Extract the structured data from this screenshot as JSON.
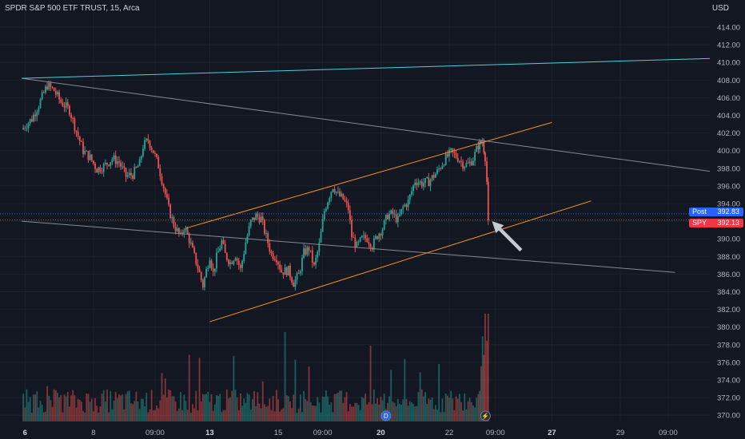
{
  "header": {
    "symbol_title": "SPDR S&P 500 ETF TRUST, 15, Arca",
    "currency": "USD"
  },
  "colors": {
    "background": "#131722",
    "up": "#26a69a",
    "down": "#ef5350",
    "channel": "#f7931a",
    "resistance_cyan": "#4dd0e1",
    "trendline_gray": "#868993",
    "post_tag": "#2962ff",
    "spy_tag": "#f23645"
  },
  "price_tags": {
    "post": {
      "label": "Post",
      "value": "392.83"
    },
    "spy": {
      "label": "SPY",
      "value": "392.13"
    }
  },
  "event_markers": [
    {
      "label": "D",
      "icon": "dividend-icon",
      "x": 21.3
    },
    {
      "label": "⚡",
      "icon": "flash-icon",
      "x": 27.12
    }
  ],
  "chart_data": {
    "type": "candlestick",
    "ylim": [
      369.5,
      416
    ],
    "y_ticks": [
      414,
      412,
      410,
      408,
      406,
      404,
      402,
      400,
      398,
      396,
      394,
      392,
      390,
      388,
      386,
      384,
      382,
      380,
      378,
      376,
      374,
      372,
      370
    ],
    "y_tick_labels": [
      "414.00",
      "412.00",
      "410.00",
      "408.00",
      "406.00",
      "404.00",
      "402.00",
      "400.00",
      "398.00",
      "396.00",
      "394.00",
      "392.00",
      "390.00",
      "388.00",
      "386.00",
      "384.00",
      "382.00",
      "380.00",
      "378.00",
      "376.00",
      "374.00",
      "372.00",
      "370.00"
    ],
    "x_ticks": [
      {
        "label": "6",
        "x": 0.2,
        "bold": true
      },
      {
        "label": "8",
        "x": 4.2,
        "bold": false
      },
      {
        "label": "09:00",
        "x": 7.8,
        "bold": false
      },
      {
        "label": "13",
        "x": 11.0,
        "bold": true
      },
      {
        "label": "15",
        "x": 15.0,
        "bold": false
      },
      {
        "label": "09:00",
        "x": 17.6,
        "bold": false
      },
      {
        "label": "20",
        "x": 21.0,
        "bold": true
      },
      {
        "label": "22",
        "x": 25.0,
        "bold": false
      },
      {
        "label": "09:00",
        "x": 27.7,
        "bold": false
      },
      {
        "label": "27",
        "x": 31.0,
        "bold": true
      },
      {
        "label": "29",
        "x": 35.0,
        "bold": false
      },
      {
        "label": "09:00",
        "x": 37.8,
        "bold": false
      }
    ],
    "price_path": [
      [
        0.0,
        402.4
      ],
      [
        0.6,
        403.6
      ],
      [
        1.0,
        405.2
      ],
      [
        1.5,
        407.4
      ],
      [
        1.9,
        406.8
      ],
      [
        2.3,
        405.5
      ],
      [
        2.8,
        404.6
      ],
      [
        3.2,
        402.2
      ],
      [
        3.6,
        400.0
      ],
      [
        4.0,
        399.2
      ],
      [
        4.4,
        397.9
      ],
      [
        4.8,
        398.2
      ],
      [
        5.3,
        399.1
      ],
      [
        5.7,
        398.7
      ],
      [
        6.1,
        397.1
      ],
      [
        6.5,
        397.3
      ],
      [
        6.9,
        398.5
      ],
      [
        7.1,
        400.5
      ],
      [
        7.4,
        401.2
      ],
      [
        7.7,
        399.9
      ],
      [
        8.0,
        398.3
      ],
      [
        8.3,
        395.9
      ],
      [
        8.6,
        393.4
      ],
      [
        8.9,
        391.6
      ],
      [
        9.3,
        390.2
      ],
      [
        9.5,
        391.4
      ],
      [
        9.8,
        389.9
      ],
      [
        10.1,
        388.0
      ],
      [
        10.3,
        386.8
      ],
      [
        10.6,
        384.7
      ],
      [
        10.8,
        386.4
      ],
      [
        11.0,
        388.1
      ],
      [
        11.2,
        386.1
      ],
      [
        11.4,
        387.9
      ],
      [
        11.7,
        389.7
      ],
      [
        11.9,
        388.2
      ],
      [
        12.2,
        387.3
      ],
      [
        12.5,
        388.2
      ],
      [
        12.8,
        386.5
      ],
      [
        13.1,
        389.6
      ],
      [
        13.4,
        391.9
      ],
      [
        13.7,
        392.6
      ],
      [
        14.0,
        392.3
      ],
      [
        14.3,
        390.2
      ],
      [
        14.6,
        388.3
      ],
      [
        14.9,
        387.9
      ],
      [
        15.2,
        386.3
      ],
      [
        15.6,
        386.4
      ],
      [
        15.9,
        385.0
      ],
      [
        16.2,
        385.9
      ],
      [
        16.5,
        388.4
      ],
      [
        16.8,
        388.9
      ],
      [
        17.1,
        386.8
      ],
      [
        17.4,
        389.3
      ],
      [
        17.7,
        393.2
      ],
      [
        18.0,
        395.0
      ],
      [
        18.2,
        396.0
      ],
      [
        18.5,
        395.0
      ],
      [
        18.8,
        394.5
      ],
      [
        19.1,
        393.4
      ],
      [
        19.3,
        390.3
      ],
      [
        19.6,
        389.1
      ],
      [
        19.9,
        390.0
      ],
      [
        20.2,
        390.1
      ],
      [
        20.5,
        389.2
      ],
      [
        20.8,
        390.4
      ],
      [
        21.1,
        391.2
      ],
      [
        21.4,
        392.7
      ],
      [
        21.7,
        392.8
      ],
      [
        22.0,
        392.1
      ],
      [
        22.3,
        393.6
      ],
      [
        22.6,
        394.2
      ],
      [
        23.0,
        396.6
      ],
      [
        23.4,
        396.3
      ],
      [
        23.8,
        396.5
      ],
      [
        24.3,
        397.6
      ],
      [
        24.7,
        398.9
      ],
      [
        25.1,
        399.8
      ],
      [
        25.5,
        399.2
      ],
      [
        25.8,
        398.5
      ],
      [
        26.1,
        398.4
      ],
      [
        26.4,
        399.1
      ],
      [
        26.7,
        400.6
      ],
      [
        26.95,
        401.0
      ],
      [
        27.1,
        399.3
      ],
      [
        27.2,
        396.5
      ],
      [
        27.28,
        392.1
      ]
    ],
    "volume_range": [
      0,
      1
    ],
    "channel_upper": [
      [
        9.6,
        391.2
      ],
      [
        31.0,
        403.2
      ]
    ],
    "channel_lower": [
      [
        11.0,
        380.6
      ],
      [
        33.3,
        394.3
      ]
    ],
    "resistance_line": [
      [
        0.0,
        408.2
      ],
      [
        41.2,
        410.5
      ]
    ],
    "trendline_upper": [
      [
        0.0,
        408.2
      ],
      [
        41.2,
        397.4
      ]
    ],
    "trendline_lower": [
      [
        0.0,
        392.0
      ],
      [
        38.2,
        386.2
      ]
    ],
    "post_price": 392.83,
    "last_price": 392.13,
    "arrow_annotation": {
      "from": [
        29.2,
        388.7
      ],
      "to": [
        27.5,
        392.0
      ]
    }
  }
}
